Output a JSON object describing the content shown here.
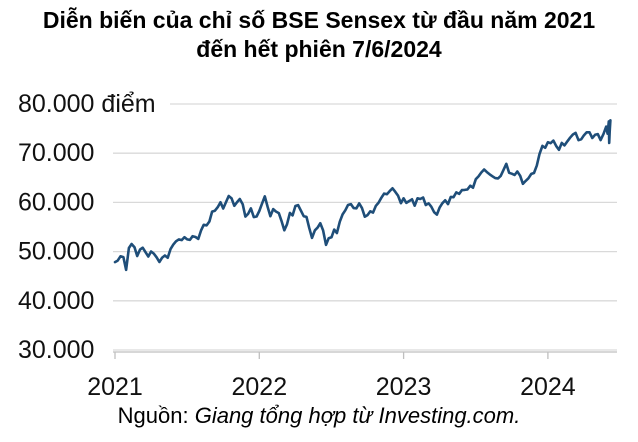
{
  "title": {
    "line1": "Diễn biến của chỉ số BSE Sensex từ đầu năm 2021",
    "line2": "đến hết phiên 7/6/2024"
  },
  "source": {
    "prefix": "Nguồn: ",
    "text": "Giang tổng hợp từ Investing.com."
  },
  "colors": {
    "line": "#1f4e79",
    "grid": "#d9d9d9",
    "axis": "#bfbfbf",
    "tick": "#bfbfbf",
    "label_text": "#111111"
  },
  "chart_data": {
    "type": "line",
    "title": "Diễn biến của chỉ số BSE Sensex từ đầu năm 2021 đến hết phiên 7/6/2024",
    "unit_label": "điểm",
    "ylim": [
      30000,
      80000
    ],
    "xlim": [
      0,
      3.48
    ],
    "grid": "horizontal",
    "legend_position": "none",
    "y_ticks": [
      {
        "value": 80000,
        "label": "80.000 điểm"
      },
      {
        "value": 70000,
        "label": "70.000"
      },
      {
        "value": 60000,
        "label": "60.000"
      },
      {
        "value": 50000,
        "label": "50.000"
      },
      {
        "value": 40000,
        "label": "40.000"
      },
      {
        "value": 30000,
        "label": "30.000"
      }
    ],
    "x_ticks": [
      {
        "t": 0,
        "label": "2021"
      },
      {
        "t": 1,
        "label": "2022"
      },
      {
        "t": 2,
        "label": "2023"
      },
      {
        "t": 3,
        "label": "2024"
      }
    ],
    "series": [
      {
        "name": "BSE Sensex",
        "points": [
          [
            0.0,
            47869
          ],
          [
            0.019,
            48178
          ],
          [
            0.038,
            49035
          ],
          [
            0.058,
            48879
          ],
          [
            0.077,
            46286
          ],
          [
            0.096,
            50732
          ],
          [
            0.115,
            51544
          ],
          [
            0.135,
            50890
          ],
          [
            0.154,
            49100
          ],
          [
            0.173,
            50405
          ],
          [
            0.192,
            50792
          ],
          [
            0.212,
            49858
          ],
          [
            0.231,
            49008
          ],
          [
            0.25,
            50030
          ],
          [
            0.269,
            49591
          ],
          [
            0.288,
            48832
          ],
          [
            0.308,
            47878
          ],
          [
            0.327,
            48782
          ],
          [
            0.346,
            49206
          ],
          [
            0.365,
            48732
          ],
          [
            0.385,
            50540
          ],
          [
            0.404,
            51423
          ],
          [
            0.423,
            52100
          ],
          [
            0.442,
            52474
          ],
          [
            0.462,
            52344
          ],
          [
            0.481,
            52925
          ],
          [
            0.5,
            52484
          ],
          [
            0.519,
            52386
          ],
          [
            0.538,
            53140
          ],
          [
            0.558,
            52975
          ],
          [
            0.577,
            52587
          ],
          [
            0.596,
            54277
          ],
          [
            0.615,
            55437
          ],
          [
            0.635,
            55329
          ],
          [
            0.654,
            56125
          ],
          [
            0.673,
            58130
          ],
          [
            0.692,
            58305
          ],
          [
            0.712,
            59016
          ],
          [
            0.731,
            60048
          ],
          [
            0.75,
            58765
          ],
          [
            0.769,
            60059
          ],
          [
            0.788,
            61306
          ],
          [
            0.808,
            60822
          ],
          [
            0.827,
            59307
          ],
          [
            0.846,
            60067
          ],
          [
            0.865,
            60687
          ],
          [
            0.885,
            59636
          ],
          [
            0.904,
            57107
          ],
          [
            0.923,
            57696
          ],
          [
            0.942,
            58787
          ],
          [
            0.962,
            57011
          ],
          [
            0.981,
            57124
          ],
          [
            1.0,
            58254
          ],
          [
            1.019,
            59745
          ],
          [
            1.038,
            61223
          ],
          [
            1.058,
            59037
          ],
          [
            1.077,
            57200
          ],
          [
            1.096,
            58645
          ],
          [
            1.115,
            58153
          ],
          [
            1.135,
            57833
          ],
          [
            1.154,
            56247
          ],
          [
            1.173,
            54333
          ],
          [
            1.192,
            55550
          ],
          [
            1.212,
            57864
          ],
          [
            1.231,
            57362
          ],
          [
            1.25,
            59277
          ],
          [
            1.269,
            59447
          ],
          [
            1.288,
            58339
          ],
          [
            1.308,
            57197
          ],
          [
            1.327,
            57061
          ],
          [
            1.346,
            54836
          ],
          [
            1.365,
            52794
          ],
          [
            1.385,
            54326
          ],
          [
            1.404,
            54885
          ],
          [
            1.423,
            55769
          ],
          [
            1.442,
            54303
          ],
          [
            1.462,
            51360
          ],
          [
            1.481,
            52728
          ],
          [
            1.5,
            52908
          ],
          [
            1.519,
            54481
          ],
          [
            1.538,
            53761
          ],
          [
            1.558,
            56072
          ],
          [
            1.577,
            57570
          ],
          [
            1.596,
            58388
          ],
          [
            1.615,
            59463
          ],
          [
            1.635,
            59646
          ],
          [
            1.654,
            58834
          ],
          [
            1.673,
            58803
          ],
          [
            1.692,
            59793
          ],
          [
            1.712,
            58841
          ],
          [
            1.731,
            57099
          ],
          [
            1.75,
            57427
          ],
          [
            1.769,
            58191
          ],
          [
            1.788,
            57920
          ],
          [
            1.808,
            59307
          ],
          [
            1.827,
            59960
          ],
          [
            1.846,
            60950
          ],
          [
            1.865,
            61795
          ],
          [
            1.885,
            61663
          ],
          [
            1.904,
            62294
          ],
          [
            1.923,
            62869
          ],
          [
            1.942,
            62181
          ],
          [
            1.962,
            61338
          ],
          [
            1.981,
            59845
          ],
          [
            2.0,
            60841
          ],
          [
            2.019,
            59900
          ],
          [
            2.038,
            60261
          ],
          [
            2.058,
            60622
          ],
          [
            2.077,
            59331
          ],
          [
            2.096,
            60842
          ],
          [
            2.115,
            60683
          ],
          [
            2.135,
            61003
          ],
          [
            2.154,
            59464
          ],
          [
            2.173,
            59809
          ],
          [
            2.192,
            59135
          ],
          [
            2.212,
            57990
          ],
          [
            2.231,
            57527
          ],
          [
            2.25,
            58992
          ],
          [
            2.269,
            59833
          ],
          [
            2.288,
            60431
          ],
          [
            2.308,
            59655
          ],
          [
            2.327,
            61112
          ],
          [
            2.346,
            61055
          ],
          [
            2.365,
            62028
          ],
          [
            2.385,
            61729
          ],
          [
            2.404,
            62502
          ],
          [
            2.423,
            62547
          ],
          [
            2.442,
            62626
          ],
          [
            2.462,
            63385
          ],
          [
            2.481,
            62979
          ],
          [
            2.5,
            64719
          ],
          [
            2.519,
            65280
          ],
          [
            2.538,
            66061
          ],
          [
            2.558,
            66684
          ],
          [
            2.577,
            66160
          ],
          [
            2.596,
            65721
          ],
          [
            2.615,
            65323
          ],
          [
            2.635,
            64949
          ],
          [
            2.654,
            64887
          ],
          [
            2.673,
            65387
          ],
          [
            2.692,
            66599
          ],
          [
            2.712,
            67839
          ],
          [
            2.731,
            66009
          ],
          [
            2.75,
            65828
          ],
          [
            2.769,
            65560
          ],
          [
            2.788,
            66283
          ],
          [
            2.808,
            65398
          ],
          [
            2.827,
            63783
          ],
          [
            2.846,
            64364
          ],
          [
            2.865,
            64905
          ],
          [
            2.885,
            65794
          ],
          [
            2.904,
            65970
          ],
          [
            2.923,
            67481
          ],
          [
            2.942,
            69826
          ],
          [
            2.962,
            71484
          ],
          [
            2.981,
            71107
          ],
          [
            3.0,
            72240
          ],
          [
            3.019,
            72026
          ],
          [
            3.038,
            72568
          ],
          [
            3.058,
            71424
          ],
          [
            3.077,
            70701
          ],
          [
            3.096,
            72086
          ],
          [
            3.115,
            71595
          ],
          [
            3.135,
            72427
          ],
          [
            3.154,
            73143
          ],
          [
            3.173,
            73806
          ],
          [
            3.192,
            74119
          ],
          [
            3.212,
            72643
          ],
          [
            3.231,
            72832
          ],
          [
            3.25,
            73651
          ],
          [
            3.269,
            74248
          ],
          [
            3.288,
            74245
          ],
          [
            3.308,
            73088
          ],
          [
            3.327,
            73730
          ],
          [
            3.346,
            73878
          ],
          [
            3.365,
            72664
          ],
          [
            3.385,
            73917
          ],
          [
            3.404,
            75410
          ],
          [
            3.414,
            73961
          ],
          [
            3.422,
            76469
          ],
          [
            3.425,
            72079
          ],
          [
            3.428,
            74382
          ],
          [
            3.43,
            75074
          ],
          [
            3.433,
            76693
          ]
        ]
      }
    ]
  }
}
